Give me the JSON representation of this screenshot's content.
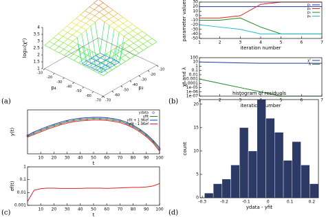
{
  "chart_data": [
    {
      "type": "surface",
      "panel": "(a)",
      "zlabel": "log₁₀(χ²)",
      "xlabel": "p₄",
      "ylabel": "p₂",
      "xlim": [
        -70,
        -10
      ],
      "xticks": [
        -70,
        -60,
        -50,
        -40,
        -30,
        -20,
        -10
      ],
      "ylim": [
        -70,
        -10
      ],
      "yticks": [
        -70,
        -60,
        -50,
        -40,
        -30,
        -20,
        -10
      ],
      "zlim": [
        1,
        4
      ],
      "zticks": [
        1,
        1.5,
        2,
        2.5,
        3,
        3.5,
        4
      ]
    },
    {
      "type": "line",
      "panel": "(b)",
      "xlabel": "iteration number",
      "ylabel": "parameter values",
      "x": [
        1,
        2,
        3,
        4,
        5,
        6,
        7
      ],
      "xlim": [
        1,
        7
      ],
      "xticks": [
        1,
        2,
        3,
        4,
        5,
        6,
        7
      ],
      "ylim": [
        -50,
        30
      ],
      "yticks": [
        -50,
        -40,
        -30,
        -20,
        -10,
        0,
        10,
        20,
        30
      ],
      "legend": "upper right",
      "series": [
        {
          "name": "p₁",
          "color": "#2233aa",
          "values": [
            20,
            20,
            20,
            20,
            20,
            20,
            20
          ]
        },
        {
          "name": "p₂",
          "color": "#dd2222",
          "values": [
            -5,
            -5,
            0,
            25,
            30,
            30,
            30
          ]
        },
        {
          "name": "p₃",
          "color": "#228822",
          "values": [
            -10,
            -10,
            -5,
            -25,
            -40,
            -40,
            -40
          ]
        },
        {
          "name": "p₄",
          "color": "#22bbcc",
          "values": [
            -20,
            -25,
            -30,
            -40,
            -40,
            -40,
            -40
          ]
        }
      ]
    },
    {
      "type": "line",
      "xlabel": "iteration number",
      "ylabel": "χ² and λ",
      "yscale": "log",
      "x": [
        1,
        2,
        3,
        4,
        5,
        6,
        7
      ],
      "xlim": [
        1,
        7
      ],
      "xticks": [
        1,
        2,
        3,
        4,
        5,
        6,
        7
      ],
      "ylim": [
        1e-07,
        100
      ],
      "yticks": [
        100,
        10,
        1,
        0.1,
        0.01,
        0.001,
        0.0001,
        {
          "value": 1e-05,
          "label": "1e-05"
        },
        {
          "value": 1e-06,
          "label": "1e-06"
        },
        {
          "value": 1e-07,
          "label": "1e-07"
        }
      ],
      "legend": "upper right",
      "series": [
        {
          "name": "χ²",
          "color": "#2233aa",
          "values": [
            10,
            8,
            6,
            5,
            5,
            5,
            5
          ]
        },
        {
          "name": "λ",
          "color": "#228822",
          "values": [
            0.001,
            0.0001,
            1e-05,
            1e-06,
            1e-07,
            1e-07,
            1e-07
          ]
        }
      ]
    },
    {
      "type": "line",
      "xlabel": "t",
      "ylabel": "y(t)",
      "x": [
        0,
        5,
        10,
        15,
        20,
        25,
        30,
        35,
        40,
        45,
        50,
        55,
        60,
        65,
        70,
        75,
        80,
        85,
        90,
        95,
        100
      ],
      "xlim": [
        0,
        100
      ],
      "xticks": [
        10,
        20,
        30,
        40,
        50,
        60,
        70,
        80,
        90,
        100
      ],
      "ylim": [
        0,
        1
      ],
      "legend": "upper right",
      "series": [
        {
          "name": "ydata",
          "mark": "points",
          "color": "#9933cc",
          "values": [
            0.41,
            0.46,
            0.54,
            0.58,
            0.65,
            0.68,
            0.74,
            0.75,
            0.79,
            0.78,
            0.81,
            0.79,
            0.8,
            0.76,
            0.75,
            0.68,
            0.63,
            0.52,
            0.43,
            0.27,
            0.11
          ]
        },
        {
          "name": "yfit",
          "color": "#228822",
          "values": [
            0.4,
            0.47,
            0.53,
            0.59,
            0.64,
            0.69,
            0.73,
            0.76,
            0.78,
            0.79,
            0.8,
            0.8,
            0.79,
            0.77,
            0.74,
            0.69,
            0.62,
            0.53,
            0.42,
            0.28,
            0.1
          ]
        },
        {
          "name": "yfit + 1.96σf",
          "color": "#2233aa",
          "values": [
            0.42,
            0.5,
            0.56,
            0.62,
            0.67,
            0.72,
            0.76,
            0.79,
            0.81,
            0.82,
            0.83,
            0.83,
            0.82,
            0.8,
            0.77,
            0.72,
            0.65,
            0.56,
            0.45,
            0.31,
            0.14
          ]
        },
        {
          "name": "yfit - 1.96σf",
          "color": "#dd2222",
          "values": [
            0.38,
            0.44,
            0.5,
            0.56,
            0.61,
            0.66,
            0.7,
            0.73,
            0.75,
            0.76,
            0.77,
            0.77,
            0.76,
            0.74,
            0.71,
            0.66,
            0.59,
            0.5,
            0.39,
            0.25,
            0.06
          ]
        }
      ]
    },
    {
      "type": "line",
      "panel": "(c)",
      "xlabel": "t",
      "ylabel": "σf(t)",
      "yscale": "log",
      "x": [
        0,
        5,
        10,
        15,
        20,
        25,
        30,
        35,
        40,
        45,
        50,
        55,
        60,
        65,
        70,
        75,
        80,
        85,
        90,
        95,
        100
      ],
      "xlim": [
        0,
        100
      ],
      "xticks": [
        10,
        20,
        30,
        40,
        50,
        60,
        70,
        80,
        90,
        100
      ],
      "ylim": [
        0.001,
        1
      ],
      "yticks": [
        0.001,
        0.01,
        0.1,
        1
      ],
      "series": [
        {
          "name": "σf",
          "color": "#dd2222",
          "values": [
            0.002,
            0.015,
            0.02,
            0.022,
            0.022,
            0.021,
            0.021,
            0.021,
            0.021,
            0.022,
            0.022,
            0.022,
            0.021,
            0.022,
            0.023,
            0.024,
            0.025,
            0.025,
            0.027,
            0.032,
            0.05
          ]
        }
      ]
    },
    {
      "type": "histogram",
      "panel": "(d)",
      "title": "histogram of residuals",
      "xlabel": "ydata - yfit",
      "ylabel": "count",
      "bins": [
        -0.29,
        -0.25,
        -0.21,
        -0.17,
        -0.13,
        -0.09,
        -0.05,
        -0.01,
        0.03,
        0.07,
        0.11,
        0.15,
        0.19,
        0.23
      ],
      "values": [
        1,
        3,
        4,
        7,
        15,
        10,
        21,
        17,
        14,
        8,
        12,
        7,
        3
      ],
      "color": "#2e3a66",
      "xlim": [
        -0.31,
        0.23
      ],
      "xticks": [
        -0.3,
        -0.2,
        -0.1,
        0,
        0.1,
        0.2
      ],
      "ylim": [
        0,
        21
      ],
      "yticks": [
        0,
        5,
        10,
        15,
        20
      ]
    }
  ]
}
